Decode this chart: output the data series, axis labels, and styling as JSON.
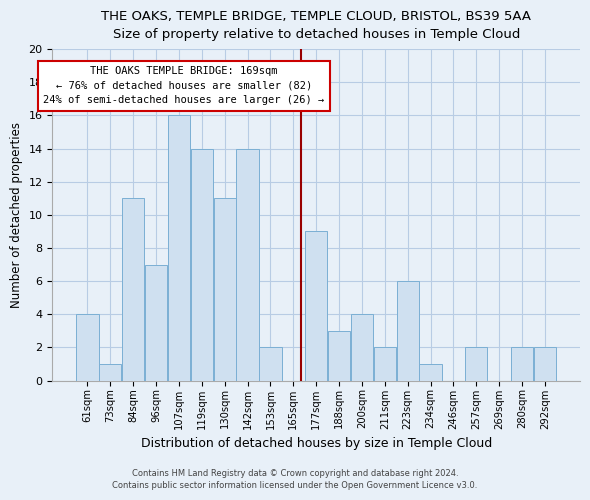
{
  "title": "THE OAKS, TEMPLE BRIDGE, TEMPLE CLOUD, BRISTOL, BS39 5AA",
  "subtitle": "Size of property relative to detached houses in Temple Cloud",
  "xlabel": "Distribution of detached houses by size in Temple Cloud",
  "ylabel": "Number of detached properties",
  "categories": [
    "61sqm",
    "73sqm",
    "84sqm",
    "96sqm",
    "107sqm",
    "119sqm",
    "130sqm",
    "142sqm",
    "153sqm",
    "165sqm",
    "177sqm",
    "188sqm",
    "200sqm",
    "211sqm",
    "223sqm",
    "234sqm",
    "246sqm",
    "257sqm",
    "269sqm",
    "280sqm",
    "292sqm"
  ],
  "values": [
    4,
    1,
    11,
    7,
    16,
    14,
    11,
    14,
    2,
    0,
    9,
    3,
    4,
    2,
    6,
    1,
    0,
    2,
    0,
    2,
    2
  ],
  "bar_color": "#cfe0f0",
  "bar_edge_color": "#7bafd4",
  "bar_edge_width": 0.7,
  "grid_color": "#b8cce4",
  "background_color": "#e8f0f8",
  "ylim": [
    0,
    20
  ],
  "yticks": [
    0,
    2,
    4,
    6,
    8,
    10,
    12,
    14,
    16,
    18,
    20
  ],
  "marker_line_color": "#990000",
  "annotation_line1": "THE OAKS TEMPLE BRIDGE: 169sqm",
  "annotation_line2": "← 76% of detached houses are smaller (82)",
  "annotation_line3": "24% of semi-detached houses are larger (26) →",
  "annotation_box_color": "#ffffff",
  "annotation_box_edge_color": "#cc0000",
  "footer_line1": "Contains HM Land Registry data © Crown copyright and database right 2024.",
  "footer_line2": "Contains public sector information licensed under the Open Government Licence v3.0."
}
